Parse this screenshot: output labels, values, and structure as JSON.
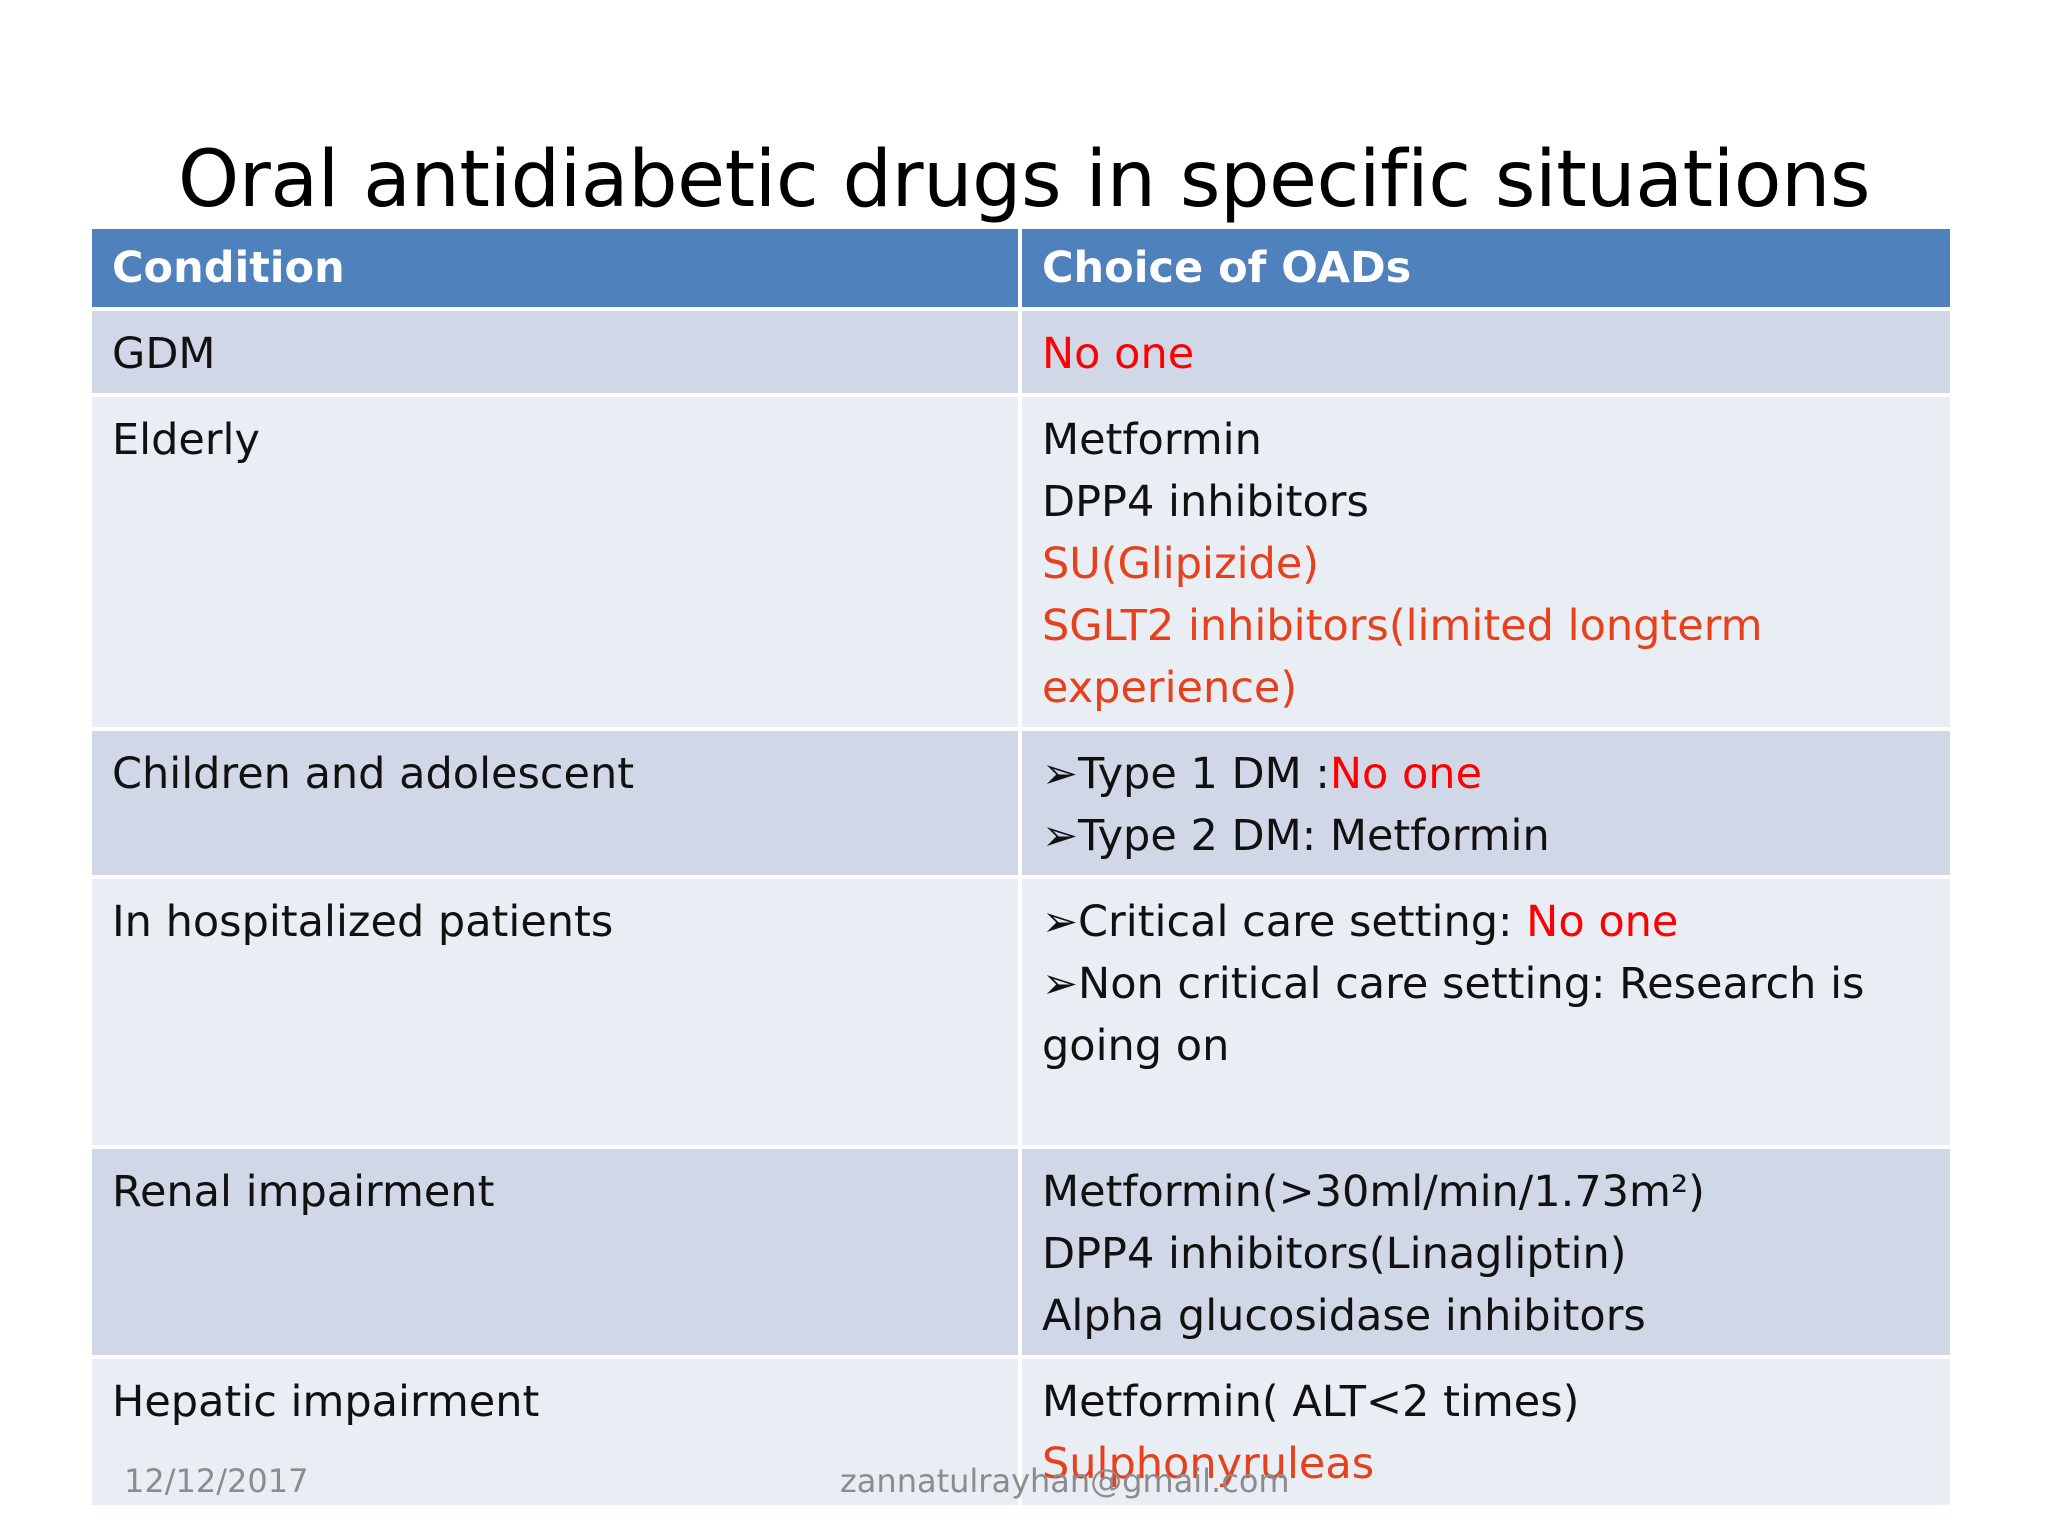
{
  "title": "Oral antidiabetic drugs in specific situations",
  "table": {
    "headers": [
      "Condition",
      "Choice  of OADs"
    ],
    "rows": [
      {
        "condition": "GDM",
        "choice": {
          "l1": "No one"
        }
      },
      {
        "condition": "Elderly",
        "choice": {
          "l1": "Metformin",
          "l2": "DPP4 inhibitors",
          "l3": "SU(Glipizide)",
          "l4": "SGLT2 inhibitors(limited longterm experience)"
        }
      },
      {
        "condition": "Children and adolescent",
        "choice": {
          "b1": "Type 1 DM :",
          "b1_red": "No one",
          "b2": "Type 2 DM: Metformin"
        }
      },
      {
        "condition": "In hospitalized patients",
        "choice": {
          "b1": "Critical care setting: ",
          "b1_red": "No one",
          "b2": "Non critical care setting: Research is going on"
        }
      },
      {
        "condition": "Renal impairment",
        "choice": {
          "l1": "Metformin(>30ml/min/1.73m²)",
          "l2": "DPP4 inhibitors(Linagliptin)",
          "l3": "Alpha glucosidase inhibitors"
        }
      },
      {
        "condition": "Hepatic impairment",
        "choice": {
          "l1": "Metformin( ALT<2 times)",
          "l2": "Sulphonyruleas"
        }
      }
    ]
  },
  "footer": {
    "date": "12/12/2017",
    "email": "zannatulrayhan@gmail.com"
  },
  "colors": {
    "header_bg": "#4f81bd",
    "row_odd": "#d0d8e8",
    "row_even": "#e9edf4",
    "highlight_red": "#ff0000",
    "highlight_orange": "#e8401a"
  },
  "icons": {
    "bullet": "arrowhead-bullet-icon"
  }
}
